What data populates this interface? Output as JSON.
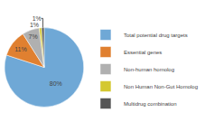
{
  "chart_data": {
    "type": "pie",
    "categories": [
      "Total potential drug targets",
      "Essential genes",
      "Non-human homolog",
      "Non Human Non-Gut Homolog",
      "Multidrug combination"
    ],
    "values": [
      80,
      11,
      7,
      1,
      1
    ],
    "value_labels": [
      "80%",
      "11%",
      "7%",
      "1%",
      "1%"
    ],
    "colors": [
      "#6fa8d6",
      "#e08030",
      "#b0b0b0",
      "#d4c830",
      "#555555"
    ],
    "data_labels": true,
    "legend": "right"
  }
}
